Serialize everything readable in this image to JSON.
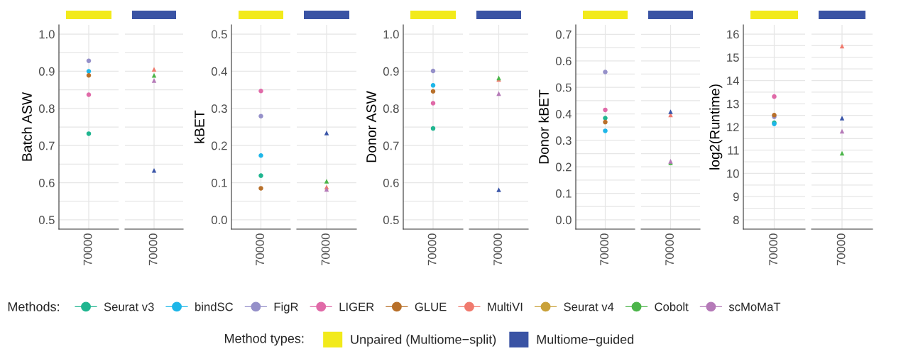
{
  "chart_data": [
    {
      "type": "scatter",
      "ylabel": "Batch ASW",
      "categories": [
        "70000"
      ],
      "ylim": [
        0.475,
        1.025
      ],
      "yticks": [
        0.5,
        {
          "value": 0.55,
          "label": null
        },
        0.6,
        {
          "value": 0.65,
          "label": null
        },
        0.7,
        {
          "value": 0.75,
          "label": null
        },
        0.8,
        {
          "value": 0.85,
          "label": null
        },
        0.9,
        {
          "value": 0.95,
          "label": null
        },
        {
          "value": 1,
          "label": "1.0"
        }
      ],
      "grid": true,
      "legend": "bottom",
      "legend_title": "Methods:",
      "series": [
        {
          "name": "Seurat v3",
          "color": "#1fb58f",
          "marker": "circle",
          "values": [
            0.732
          ]
        },
        {
          "name": "bindSC",
          "color": "#1eb6e8",
          "marker": "circle",
          "values": [
            0.9
          ]
        },
        {
          "name": "FigR",
          "color": "#9590c9",
          "marker": "circle",
          "values": [
            0.928
          ]
        },
        {
          "name": "LIGER",
          "color": "#e06aa8",
          "marker": "circle",
          "values": [
            0.837
          ]
        },
        {
          "name": "GLUE",
          "color": "#b8702a",
          "marker": "circle",
          "values": [
            0.889
          ]
        },
        {
          "name": "MultiVI",
          "color": "#f07a6e",
          "values": [
            null
          ]
        },
        {
          "name": "Seurat v4",
          "color": "#c9a13a",
          "values": [
            null
          ]
        },
        {
          "name": "Cobolt",
          "color": "#4cb54a",
          "values": [
            null
          ]
        },
        {
          "name": "scMoMaT",
          "color": "#b57ab8",
          "values": [
            null
          ]
        }
      ]
    },
    {
      "type": "scatter",
      "categories": [
        "70000"
      ],
      "ylim": [
        0.475,
        1.025
      ],
      "yticks": [
        0.5,
        {
          "value": 0.55,
          "label": null
        },
        0.6,
        {
          "value": 0.65,
          "label": null
        },
        0.7,
        {
          "value": 0.75,
          "label": null
        },
        0.8,
        {
          "value": 0.85,
          "label": null
        },
        0.9,
        {
          "value": 0.95,
          "label": null
        },
        1
      ],
      "grid": true,
      "tick_labels": "x",
      "series": [
        {
          "color": "#f07a6e",
          "marker": "triangle",
          "values": [
            0.905
          ]
        },
        {
          "color": "#4cb54a",
          "marker": "triangle",
          "values": [
            0.889
          ]
        },
        {
          "color": "#b57ab8",
          "marker": "triangle",
          "values": [
            0.875
          ]
        },
        {
          "color": "#3a55a8",
          "marker": "triangle",
          "values": [
            0.633
          ]
        }
      ]
    },
    {
      "type": "scatter",
      "ylabel": "kBET",
      "categories": [
        "70000"
      ],
      "ylim": [
        -0.025,
        0.525
      ],
      "yticks": [
        {
          "value": 0,
          "label": "0.0"
        },
        {
          "value": 0.05,
          "label": null
        },
        0.1,
        {
          "value": 0.15,
          "label": null
        },
        0.2,
        {
          "value": 0.25,
          "label": null
        },
        0.3,
        {
          "value": 0.35,
          "label": null
        },
        0.4,
        {
          "value": 0.45,
          "label": null
        },
        0.5
      ],
      "grid": true,
      "series": [
        {
          "color": "#1fb58f",
          "marker": "circle",
          "values": [
            0.119
          ]
        },
        {
          "color": "#1eb6e8",
          "marker": "circle",
          "values": [
            0.173
          ]
        },
        {
          "color": "#9590c9",
          "marker": "circle",
          "values": [
            0.279
          ]
        },
        {
          "color": "#e06aa8",
          "marker": "circle",
          "values": [
            0.347
          ]
        },
        {
          "color": "#b8702a",
          "marker": "circle",
          "values": [
            0.085
          ]
        }
      ]
    },
    {
      "type": "scatter",
      "categories": [
        "70000"
      ],
      "ylim": [
        -0.025,
        0.525
      ],
      "yticks": [
        0,
        {
          "value": 0.05,
          "label": null
        },
        0.1,
        {
          "value": 0.15,
          "label": null
        },
        0.2,
        {
          "value": 0.25,
          "label": null
        },
        0.3,
        {
          "value": 0.35,
          "label": null
        },
        0.4,
        {
          "value": 0.45,
          "label": null
        },
        0.5
      ],
      "grid": true,
      "tick_labels": "x",
      "series": [
        {
          "color": "#f07a6e",
          "marker": "triangle",
          "values": [
            0.088
          ]
        },
        {
          "color": "#4cb54a",
          "marker": "triangle",
          "values": [
            0.104
          ]
        },
        {
          "color": "#b57ab8",
          "marker": "triangle",
          "values": [
            0.082
          ]
        },
        {
          "color": "#3a55a8",
          "marker": "triangle",
          "values": [
            0.234
          ]
        }
      ]
    },
    {
      "type": "scatter",
      "ylabel": "Donor ASW",
      "categories": [
        "70000"
      ],
      "ylim": [
        0.475,
        1.025
      ],
      "yticks": [
        0.5,
        {
          "value": 0.55,
          "label": null
        },
        0.6,
        {
          "value": 0.65,
          "label": null
        },
        0.7,
        {
          "value": 0.75,
          "label": null
        },
        0.8,
        {
          "value": 0.85,
          "label": null
        },
        0.9,
        {
          "value": 0.95,
          "label": null
        },
        {
          "value": 1,
          "label": "1.0"
        }
      ],
      "grid": true,
      "series": [
        {
          "color": "#1fb58f",
          "marker": "circle",
          "values": [
            0.746
          ]
        },
        {
          "color": "#1eb6e8",
          "marker": "circle",
          "values": [
            0.862
          ]
        },
        {
          "color": "#9590c9",
          "marker": "circle",
          "values": [
            0.901
          ]
        },
        {
          "color": "#e06aa8",
          "marker": "circle",
          "values": [
            0.814
          ]
        },
        {
          "color": "#b8702a",
          "marker": "circle",
          "values": [
            0.846
          ]
        }
      ]
    },
    {
      "type": "scatter",
      "categories": [
        "70000"
      ],
      "ylim": [
        0.475,
        1.025
      ],
      "yticks": [
        0.5,
        {
          "value": 0.55,
          "label": null
        },
        0.6,
        {
          "value": 0.65,
          "label": null
        },
        0.7,
        {
          "value": 0.75,
          "label": null
        },
        0.8,
        {
          "value": 0.85,
          "label": null
        },
        0.9,
        {
          "value": 0.95,
          "label": null
        },
        1
      ],
      "grid": true,
      "tick_labels": "x",
      "series": [
        {
          "color": "#f07a6e",
          "marker": "triangle",
          "values": [
            0.878
          ]
        },
        {
          "color": "#4cb54a",
          "marker": "triangle",
          "values": [
            0.882
          ]
        },
        {
          "color": "#b57ab8",
          "marker": "triangle",
          "values": [
            0.84
          ]
        },
        {
          "color": "#3a55a8",
          "marker": "triangle",
          "values": [
            0.581
          ]
        }
      ]
    },
    {
      "type": "scatter",
      "ylabel": "Donor kBET",
      "categories": [
        "70000"
      ],
      "ylim": [
        -0.035,
        0.736
      ],
      "yticks": [
        {
          "value": 0,
          "label": "0.0"
        },
        {
          "value": 0.05,
          "label": null
        },
        0.1,
        {
          "value": 0.15,
          "label": null
        },
        0.2,
        {
          "value": 0.25,
          "label": null
        },
        0.3,
        {
          "value": 0.35,
          "label": null
        },
        0.4,
        {
          "value": 0.45,
          "label": null
        },
        0.5,
        {
          "value": 0.55,
          "label": null
        },
        0.6,
        {
          "value": 0.65,
          "label": null
        },
        0.7
      ],
      "grid": true,
      "series": [
        {
          "color": "#1fb58f",
          "marker": "circle",
          "values": [
            0.384
          ]
        },
        {
          "color": "#1eb6e8",
          "marker": "circle",
          "values": [
            0.336
          ]
        },
        {
          "color": "#9590c9",
          "marker": "circle",
          "values": [
            0.558
          ]
        },
        {
          "color": "#e06aa8",
          "marker": "circle",
          "values": [
            0.415
          ]
        },
        {
          "color": "#b8702a",
          "marker": "circle",
          "values": [
            0.369
          ]
        }
      ]
    },
    {
      "type": "scatter",
      "categories": [
        "70000"
      ],
      "ylim": [
        -0.035,
        0.736
      ],
      "yticks": [
        0,
        {
          "value": 0.05,
          "label": null
        },
        0.1,
        {
          "value": 0.15,
          "label": null
        },
        0.2,
        {
          "value": 0.25,
          "label": null
        },
        0.3,
        {
          "value": 0.35,
          "label": null
        },
        0.4,
        {
          "value": 0.45,
          "label": null
        },
        0.5,
        {
          "value": 0.55,
          "label": null
        },
        0.6,
        {
          "value": 0.65,
          "label": null
        },
        0.7
      ],
      "grid": true,
      "tick_labels": "x",
      "series": [
        {
          "color": "#f07a6e",
          "marker": "triangle",
          "values": [
            0.396
          ]
        },
        {
          "color": "#4cb54a",
          "marker": "triangle",
          "values": [
            0.215
          ]
        },
        {
          "color": "#b57ab8",
          "marker": "triangle",
          "values": [
            0.221
          ]
        },
        {
          "color": "#3a55a8",
          "marker": "triangle",
          "values": [
            0.408
          ]
        }
      ]
    },
    {
      "type": "scatter",
      "ylabel": "log2(Runtime)",
      "categories": [
        "70000"
      ],
      "ylim": [
        7.6,
        16.4
      ],
      "yticks": [
        8,
        {
          "value": 8.5,
          "label": null
        },
        9,
        {
          "value": 9.5,
          "label": null
        },
        10,
        {
          "value": 10.5,
          "label": null
        },
        11,
        {
          "value": 11.5,
          "label": null
        },
        12,
        {
          "value": 12.5,
          "label": null
        },
        13,
        {
          "value": 13.5,
          "label": null
        },
        14,
        {
          "value": 14.5,
          "label": null
        },
        15,
        {
          "value": 15.5,
          "label": null
        },
        16
      ],
      "grid": true,
      "series": [
        {
          "color": "#1fb58f",
          "marker": "circle",
          "values": [
            12.18
          ]
        },
        {
          "color": "#1eb6e8",
          "marker": "circle",
          "values": [
            12.13
          ]
        },
        {
          "color": "#9590c9",
          "marker": "circle",
          "values": [
            12.44
          ]
        },
        {
          "color": "#e06aa8",
          "marker": "circle",
          "values": [
            13.31
          ]
        },
        {
          "color": "#b8702a",
          "marker": "circle",
          "values": [
            12.51
          ]
        }
      ]
    },
    {
      "type": "scatter",
      "categories": [
        "70000"
      ],
      "ylim": [
        7.6,
        16.4
      ],
      "yticks": [
        8,
        {
          "value": 8.5,
          "label": null
        },
        9,
        {
          "value": 9.5,
          "label": null
        },
        10,
        {
          "value": 10.5,
          "label": null
        },
        11,
        {
          "value": 11.5,
          "label": null
        },
        12,
        {
          "value": 12.5,
          "label": null
        },
        13,
        {
          "value": 13.5,
          "label": null
        },
        14,
        {
          "value": 14.5,
          "label": null
        },
        15,
        {
          "value": 15.5,
          "label": null
        },
        16
      ],
      "grid": true,
      "tick_labels": "x",
      "series": [
        {
          "color": "#f07a6e",
          "marker": "triangle",
          "values": [
            15.48
          ]
        },
        {
          "color": "#4cb54a",
          "marker": "triangle",
          "values": [
            10.87
          ]
        },
        {
          "color": "#b57ab8",
          "marker": "triangle",
          "values": [
            11.82
          ]
        },
        {
          "color": "#3a55a8",
          "marker": "triangle",
          "values": [
            12.38
          ]
        }
      ]
    },
    {
      "type": "other",
      "title": "Method types:",
      "categories": [
        "Unpaired (Multiome−split)",
        "Multiome−guided"
      ],
      "colors": [
        "#f2ea1b",
        "#3a53a4"
      ]
    }
  ]
}
